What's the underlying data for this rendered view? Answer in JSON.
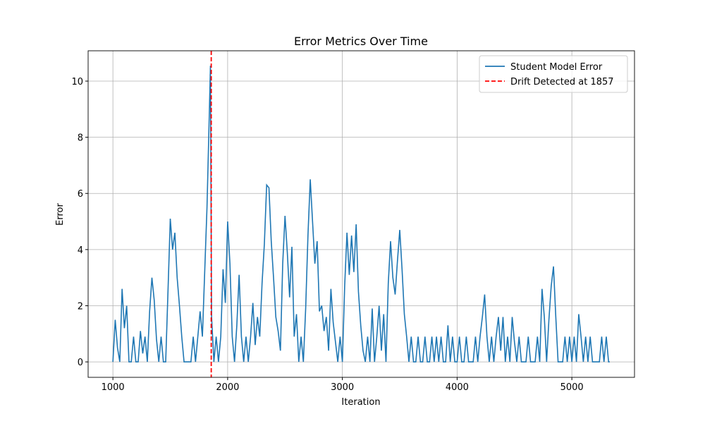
{
  "chart_data": {
    "type": "line",
    "title": "Error Metrics Over Time",
    "x_label": "Iteration",
    "y_label": "Error",
    "x": [
      1000,
      1020,
      1040,
      1060,
      1080,
      1100,
      1120,
      1140,
      1160,
      1180,
      1200,
      1220,
      1240,
      1260,
      1280,
      1300,
      1320,
      1340,
      1360,
      1380,
      1400,
      1420,
      1440,
      1460,
      1480,
      1500,
      1520,
      1540,
      1560,
      1580,
      1600,
      1620,
      1640,
      1660,
      1680,
      1700,
      1720,
      1740,
      1760,
      1780,
      1800,
      1820,
      1840,
      1850,
      1860,
      1880,
      1900,
      1920,
      1940,
      1960,
      1980,
      2000,
      2020,
      2040,
      2060,
      2080,
      2100,
      2120,
      2140,
      2160,
      2180,
      2200,
      2220,
      2240,
      2260,
      2280,
      2300,
      2320,
      2340,
      2360,
      2380,
      2400,
      2420,
      2440,
      2460,
      2480,
      2500,
      2520,
      2540,
      2560,
      2580,
      2600,
      2620,
      2640,
      2660,
      2680,
      2700,
      2720,
      2740,
      2760,
      2780,
      2800,
      2820,
      2840,
      2860,
      2880,
      2900,
      2920,
      2940,
      2960,
      2980,
      3000,
      3020,
      3040,
      3060,
      3080,
      3100,
      3120,
      3140,
      3160,
      3180,
      3200,
      3220,
      3240,
      3260,
      3280,
      3300,
      3320,
      3340,
      3360,
      3380,
      3400,
      3420,
      3440,
      3460,
      3480,
      3500,
      3520,
      3540,
      3560,
      3580,
      3600,
      3620,
      3640,
      3660,
      3680,
      3700,
      3720,
      3740,
      3760,
      3780,
      3800,
      3820,
      3840,
      3860,
      3880,
      3900,
      3920,
      3940,
      3960,
      3980,
      4000,
      4020,
      4040,
      4060,
      4080,
      4100,
      4120,
      4140,
      4160,
      4180,
      4200,
      4220,
      4240,
      4260,
      4280,
      4300,
      4320,
      4340,
      4360,
      4380,
      4400,
      4420,
      4440,
      4460,
      4480,
      4500,
      4520,
      4540,
      4560,
      4580,
      4600,
      4620,
      4640,
      4660,
      4680,
      4700,
      4720,
      4740,
      4760,
      4780,
      4800,
      4820,
      4840,
      4860,
      4880,
      4900,
      4920,
      4940,
      4960,
      4980,
      5000,
      5020,
      5040,
      5060,
      5080,
      5100,
      5120,
      5140,
      5160,
      5180,
      5200,
      5220,
      5240,
      5260,
      5280,
      5300,
      5320,
      5330
    ],
    "series": [
      {
        "name": "Student Model Error",
        "color": "#1f77b4",
        "values": [
          0,
          1.5,
          0.5,
          0,
          2.6,
          1.2,
          2.0,
          0,
          0,
          0.9,
          0,
          0,
          1.1,
          0.3,
          0.9,
          0,
          1.8,
          3.0,
          2.2,
          0.8,
          0,
          0.9,
          0,
          0,
          2.5,
          5.1,
          4.0,
          4.6,
          3.0,
          2.0,
          0.9,
          0,
          0,
          0,
          0,
          0.9,
          0,
          0.9,
          1.8,
          0.9,
          3.2,
          5.5,
          8.8,
          10.55,
          1.6,
          0,
          0.9,
          0,
          0.9,
          3.3,
          2.1,
          5.0,
          3.5,
          0.9,
          0,
          1.3,
          3.1,
          0.9,
          0,
          0.9,
          0,
          0.9,
          2.1,
          0.6,
          1.6,
          0.9,
          2.8,
          4.2,
          6.3,
          6.2,
          4.3,
          3.0,
          1.6,
          1.1,
          0.4,
          3.5,
          5.2,
          3.9,
          2.3,
          4.1,
          0.9,
          1.7,
          0,
          0.9,
          0,
          1.9,
          4.5,
          6.5,
          5.0,
          3.5,
          4.3,
          1.8,
          2.0,
          1.1,
          1.6,
          0.4,
          2.6,
          1.4,
          0.7,
          0,
          0.9,
          0,
          2.7,
          4.6,
          3.1,
          4.5,
          3.2,
          4.9,
          2.5,
          1.3,
          0.4,
          0,
          0.9,
          0,
          1.9,
          0,
          0.9,
          2.0,
          0.4,
          1.7,
          0,
          2.8,
          4.3,
          3.0,
          2.4,
          3.6,
          4.7,
          3.3,
          1.7,
          0.9,
          0,
          0.9,
          0,
          0,
          0.9,
          0,
          0,
          0.9,
          0,
          0,
          0.9,
          0,
          0.9,
          0,
          0.9,
          0,
          0,
          1.3,
          0,
          0.9,
          0,
          0,
          0.9,
          0,
          0,
          0.9,
          0,
          0,
          0,
          0.9,
          0,
          0.9,
          1.6,
          2.4,
          0.9,
          0,
          0.9,
          0,
          0.9,
          1.6,
          0.4,
          1.6,
          0,
          0.9,
          0,
          1.6,
          0.7,
          0,
          0.9,
          0,
          0,
          0,
          0.9,
          0,
          0,
          0,
          0.9,
          0,
          2.6,
          1.6,
          0,
          1.5,
          2.7,
          3.4,
          1.6,
          0,
          0,
          0,
          0.9,
          0,
          0.9,
          0,
          0.9,
          0,
          1.7,
          0.9,
          0,
          0.9,
          0,
          0.9,
          0,
          0,
          0,
          0,
          0.9,
          0,
          0.9,
          0,
          0
        ]
      }
    ],
    "vline": {
      "x": 1857,
      "name": "Drift Detected at 1857",
      "color": "#ff0000"
    },
    "xlim": [
      784,
      5546
    ],
    "ylim": [
      -0.55,
      11.08
    ],
    "xticks": [
      1000,
      2000,
      3000,
      4000,
      5000
    ],
    "yticks": [
      0,
      2,
      4,
      6,
      8,
      10
    ],
    "grid": true,
    "legend": "upper right"
  }
}
